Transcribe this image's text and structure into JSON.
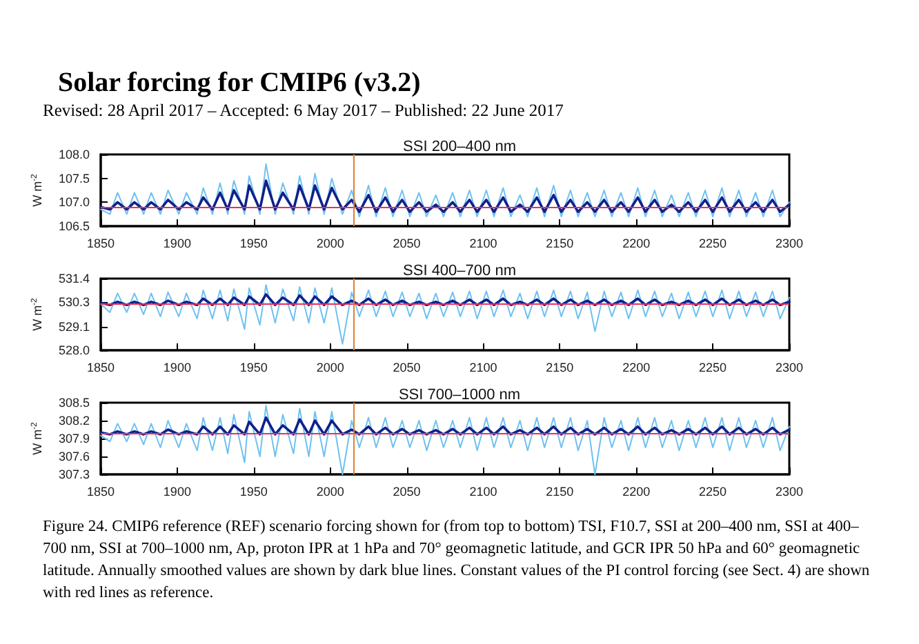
{
  "chart_data": [
    {
      "type": "line",
      "title": "SSI 200–400 nm",
      "ylabel": "W m$^{-2}$",
      "annotations": [
        "Solar forcing for CMIP6 (v3.2)",
        "Revised: 28 April 2017 – Accepted: 6 May 2017 – Published: 22 June 2017"
      ],
      "marker": "none",
      "line_style": "solid",
      "grid": false,
      "xlim": [
        1850,
        2300
      ],
      "xticks": [
        1850,
        1900,
        1950,
        2000,
        2050,
        2100,
        2150,
        2200,
        2250,
        2300
      ],
      "ylim": [
        106.5,
        108.0
      ],
      "yticks": [
        106.5,
        {
          "value": 107,
          "label": "107.0"
        },
        107.5,
        {
          "value": 108,
          "label": "108.0"
        }
      ],
      "x": [
        1850,
        1856,
        1861,
        1867,
        1872,
        1878,
        1883,
        1889,
        1894,
        1901,
        1906,
        1913,
        1917,
        1923,
        1928,
        1933,
        1937,
        1944,
        1947,
        1954,
        1958,
        1964,
        1969,
        1976,
        1980,
        1986,
        1990,
        1996,
        2001,
        2008,
        2014,
        2019,
        2025,
        2030,
        2036,
        2041,
        2047,
        2052,
        2058,
        2063,
        2069,
        2074,
        2080,
        2085,
        2091,
        2096,
        2102,
        2107,
        2113,
        2118,
        2124,
        2129,
        2135,
        2140,
        2146,
        2151,
        2157,
        2162,
        2168,
        2173,
        2179,
        2184,
        2190,
        2195,
        2201,
        2206,
        2212,
        2217,
        2223,
        2228,
        2234,
        2239,
        2245,
        2250,
        2256,
        2261,
        2267,
        2272,
        2278,
        2283,
        2289,
        2294,
        2300
      ],
      "series": [
        {
          "color": "#6ec1f0",
          "values": [
            106.85,
            106.75,
            107.2,
            106.75,
            107.2,
            106.75,
            107.2,
            106.75,
            107.25,
            106.75,
            107.2,
            106.75,
            107.3,
            106.75,
            107.4,
            106.75,
            107.45,
            106.75,
            107.55,
            106.75,
            107.8,
            106.75,
            107.4,
            106.75,
            107.55,
            106.75,
            107.6,
            106.75,
            107.5,
            106.75,
            107.25,
            106.7,
            107.35,
            106.7,
            107.3,
            106.7,
            107.25,
            106.7,
            107.2,
            106.7,
            107.15,
            106.7,
            107.2,
            106.7,
            107.25,
            106.7,
            107.25,
            106.7,
            107.3,
            106.7,
            107.15,
            106.7,
            107.3,
            106.7,
            107.35,
            106.7,
            107.25,
            106.7,
            107.2,
            106.7,
            107.25,
            106.7,
            107.2,
            106.7,
            107.3,
            106.7,
            107.25,
            106.7,
            107.15,
            106.7,
            107.2,
            106.7,
            107.25,
            106.7,
            107.3,
            106.7,
            107.25,
            106.7,
            107.2,
            106.7,
            107.25,
            106.7,
            107.0
          ]
        },
        {
          "color": "#10208a",
          "values": [
            106.9,
            106.85,
            107.0,
            106.85,
            107.0,
            106.85,
            107.0,
            106.85,
            107.05,
            106.85,
            107.0,
            106.85,
            107.1,
            106.85,
            107.2,
            106.85,
            107.25,
            106.85,
            107.35,
            106.85,
            107.45,
            106.85,
            107.2,
            106.85,
            107.35,
            106.85,
            107.35,
            106.85,
            107.3,
            106.85,
            107.05,
            106.8,
            107.15,
            106.8,
            107.1,
            106.8,
            107.05,
            106.8,
            107.0,
            106.8,
            106.95,
            106.8,
            107.0,
            106.8,
            107.05,
            106.8,
            107.05,
            106.8,
            107.1,
            106.8,
            106.95,
            106.8,
            107.1,
            106.8,
            107.15,
            106.8,
            107.05,
            106.8,
            107.0,
            106.8,
            107.05,
            106.8,
            107.0,
            106.8,
            107.1,
            106.8,
            107.05,
            106.8,
            106.95,
            106.8,
            107.0,
            106.8,
            107.05,
            106.8,
            107.1,
            106.8,
            107.05,
            106.8,
            107.0,
            106.8,
            107.05,
            106.8,
            106.95
          ]
        }
      ],
      "ref_lines": [
        {
          "axis": "y",
          "value": 106.9,
          "color": "#e8305a"
        },
        {
          "axis": "x",
          "value": 2015,
          "color": "#e08030"
        }
      ]
    },
    {
      "type": "line",
      "title": "SSI 400–700 nm",
      "ylabel": "W m$^{-2}$",
      "marker": "none",
      "line_style": "solid",
      "grid": false,
      "xlim": [
        1850,
        2300
      ],
      "xticks": [
        1850,
        1900,
        1950,
        2000,
        2050,
        2100,
        2150,
        2200,
        2250,
        2300
      ],
      "ylim": [
        528.0,
        531.4
      ],
      "yticks": [
        {
          "value": 528,
          "label": "528.0"
        },
        529.1,
        530.3,
        531.4
      ],
      "x": [
        1850,
        1856,
        1861,
        1867,
        1872,
        1878,
        1883,
        1889,
        1894,
        1901,
        1906,
        1913,
        1917,
        1923,
        1928,
        1933,
        1937,
        1944,
        1947,
        1954,
        1958,
        1964,
        1969,
        1976,
        1980,
        1986,
        1990,
        1996,
        2001,
        2008,
        2014,
        2019,
        2025,
        2030,
        2036,
        2041,
        2047,
        2052,
        2058,
        2063,
        2069,
        2074,
        2080,
        2085,
        2091,
        2096,
        2102,
        2107,
        2113,
        2118,
        2124,
        2129,
        2135,
        2140,
        2146,
        2151,
        2157,
        2162,
        2168,
        2173,
        2179,
        2184,
        2190,
        2195,
        2201,
        2206,
        2212,
        2217,
        2223,
        2228,
        2234,
        2239,
        2245,
        2250,
        2256,
        2261,
        2267,
        2272,
        2278,
        2283,
        2289,
        2294,
        2300
      ],
      "series": [
        {
          "color": "#6ec1f0",
          "values": [
            530.2,
            529.8,
            530.7,
            529.8,
            530.7,
            529.7,
            530.7,
            529.6,
            530.75,
            529.6,
            530.7,
            529.5,
            530.85,
            529.5,
            530.85,
            529.4,
            530.9,
            529.0,
            530.95,
            529.2,
            531.1,
            529.3,
            530.9,
            529.4,
            531.0,
            529.3,
            530.95,
            529.3,
            530.95,
            528.3,
            530.75,
            529.6,
            530.85,
            529.6,
            530.8,
            529.6,
            530.75,
            529.6,
            530.7,
            529.5,
            530.7,
            529.6,
            530.75,
            529.6,
            530.8,
            529.5,
            530.8,
            529.6,
            530.85,
            529.6,
            530.7,
            529.5,
            530.8,
            529.6,
            530.85,
            529.6,
            530.8,
            529.5,
            530.75,
            528.9,
            530.8,
            529.6,
            530.75,
            529.5,
            530.85,
            529.6,
            530.8,
            529.6,
            530.7,
            529.5,
            530.75,
            529.6,
            530.8,
            529.6,
            530.85,
            529.5,
            530.8,
            529.6,
            530.75,
            529.6,
            530.8,
            529.5,
            530.5
          ]
        },
        {
          "color": "#10208a",
          "values": [
            530.25,
            530.15,
            530.3,
            530.15,
            530.3,
            530.15,
            530.3,
            530.15,
            530.35,
            530.15,
            530.3,
            530.15,
            530.45,
            530.15,
            530.45,
            530.15,
            530.5,
            530.15,
            530.55,
            530.15,
            530.65,
            530.15,
            530.5,
            530.15,
            530.6,
            530.15,
            530.55,
            530.15,
            530.55,
            530.15,
            530.35,
            530.15,
            530.45,
            530.15,
            530.4,
            530.15,
            530.35,
            530.15,
            530.3,
            530.15,
            530.3,
            530.15,
            530.35,
            530.15,
            530.4,
            530.15,
            530.4,
            530.15,
            530.45,
            530.15,
            530.3,
            530.15,
            530.4,
            530.15,
            530.45,
            530.15,
            530.4,
            530.15,
            530.35,
            530.15,
            530.4,
            530.15,
            530.35,
            530.15,
            530.45,
            530.15,
            530.4,
            530.15,
            530.3,
            530.15,
            530.35,
            530.15,
            530.4,
            530.15,
            530.45,
            530.15,
            530.4,
            530.15,
            530.35,
            530.15,
            530.4,
            530.15,
            530.3
          ]
        }
      ],
      "ref_lines": [
        {
          "axis": "y",
          "value": 530.2,
          "color": "#e8305a"
        },
        {
          "axis": "x",
          "value": 2015,
          "color": "#e08030"
        }
      ]
    },
    {
      "type": "line",
      "title": "SSI 700–1000 nm",
      "ylabel": "W m$^{-2}$",
      "annotations": [
        "Figure 24. CMIP6 reference (REF) scenario forcing shown for (from top to bottom) TSI, F10.7, SSI at 200–400 nm, SSI at 400–700 nm, SSI at 700–1000 nm, Ap, proton IPR at 1 hPa and 70° geomagnetic latitude, and GCR IPR 50 hPa and 60° geomagnetic latitude. Annually smoothed values are shown by dark blue lines. Constant values of the PI control forcing (see Sect. 4) are shown with red lines as reference."
      ],
      "marker": "none",
      "line_style": "solid",
      "grid": false,
      "xlim": [
        1850,
        2300
      ],
      "xticks": [
        1850,
        1900,
        1950,
        2000,
        2050,
        2100,
        2150,
        2200,
        2250,
        2300
      ],
      "ylim": [
        307.3,
        308.5
      ],
      "yticks": [
        307.3,
        307.6,
        307.9,
        308.2,
        308.5
      ],
      "x": [
        1850,
        1856,
        1861,
        1867,
        1872,
        1878,
        1883,
        1889,
        1894,
        1901,
        1906,
        1913,
        1917,
        1923,
        1928,
        1933,
        1937,
        1944,
        1947,
        1954,
        1958,
        1964,
        1969,
        1976,
        1980,
        1986,
        1990,
        1996,
        2001,
        2008,
        2014,
        2019,
        2025,
        2030,
        2036,
        2041,
        2047,
        2052,
        2058,
        2063,
        2069,
        2074,
        2080,
        2085,
        2091,
        2096,
        2102,
        2107,
        2113,
        2118,
        2124,
        2129,
        2135,
        2140,
        2146,
        2151,
        2157,
        2162,
        2168,
        2173,
        2179,
        2184,
        2190,
        2195,
        2201,
        2206,
        2212,
        2217,
        2223,
        2228,
        2234,
        2239,
        2245,
        2250,
        2256,
        2261,
        2267,
        2272,
        2278,
        2283,
        2289,
        2294,
        2300
      ],
      "series": [
        {
          "color": "#6ec1f0",
          "values": [
            307.95,
            307.85,
            308.15,
            307.85,
            308.15,
            307.8,
            308.15,
            307.75,
            308.2,
            307.75,
            308.15,
            307.7,
            308.25,
            307.7,
            308.25,
            307.65,
            308.3,
            307.5,
            308.35,
            307.6,
            308.45,
            307.6,
            308.3,
            307.65,
            308.4,
            307.6,
            308.35,
            307.6,
            308.35,
            307.3,
            308.2,
            307.75,
            308.25,
            307.75,
            308.25,
            307.75,
            308.2,
            307.75,
            308.2,
            307.7,
            308.2,
            307.75,
            308.2,
            307.75,
            308.25,
            307.7,
            308.25,
            307.75,
            308.25,
            307.75,
            308.2,
            307.7,
            308.25,
            307.75,
            308.25,
            307.75,
            308.25,
            307.7,
            308.2,
            307.3,
            308.25,
            307.75,
            308.2,
            307.7,
            308.25,
            307.75,
            308.25,
            307.75,
            308.2,
            307.7,
            308.2,
            307.75,
            308.25,
            307.75,
            308.25,
            307.7,
            308.25,
            307.75,
            308.2,
            307.75,
            308.25,
            307.7,
            308.1
          ]
        },
        {
          "color": "#10208a",
          "values": [
            308.0,
            307.97,
            308.02,
            307.97,
            308.02,
            307.97,
            308.02,
            307.97,
            308.05,
            307.97,
            308.02,
            307.97,
            308.1,
            307.97,
            308.1,
            307.97,
            308.12,
            307.97,
            308.18,
            307.97,
            308.25,
            307.97,
            308.12,
            307.97,
            308.22,
            307.97,
            308.2,
            307.97,
            308.2,
            307.97,
            308.05,
            307.97,
            308.1,
            307.97,
            308.08,
            307.97,
            308.06,
            307.97,
            308.04,
            307.97,
            308.04,
            307.97,
            308.06,
            307.97,
            308.08,
            307.97,
            308.08,
            307.97,
            308.1,
            307.97,
            308.04,
            307.97,
            308.08,
            307.97,
            308.1,
            307.97,
            308.08,
            307.97,
            308.06,
            307.97,
            308.08,
            307.97,
            308.06,
            307.97,
            308.1,
            307.97,
            308.08,
            307.97,
            308.04,
            307.97,
            308.06,
            307.97,
            308.08,
            307.97,
            308.1,
            307.97,
            308.08,
            307.97,
            308.06,
            307.97,
            308.08,
            307.97,
            308.05
          ]
        }
      ],
      "ref_lines": [
        {
          "axis": "y",
          "value": 307.98,
          "color": "#e8305a"
        },
        {
          "axis": "x",
          "value": 2015,
          "color": "#e08030"
        }
      ]
    }
  ]
}
